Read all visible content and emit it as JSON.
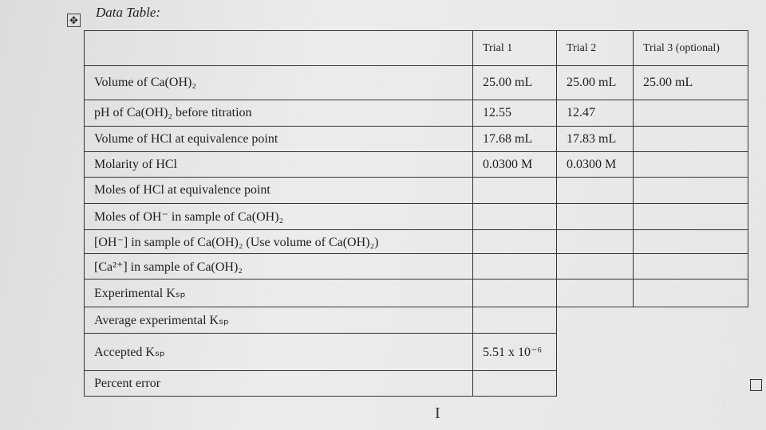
{
  "header": {
    "title": "Data Table:"
  },
  "table": {
    "columns": [
      "Trial 1",
      "Trial 2",
      "Trial 3 (optional)"
    ],
    "rows": [
      {
        "label": "Volume of Ca(OH)₂",
        "values": [
          "25.00 mL",
          "25.00 mL",
          "25.00 mL"
        ]
      },
      {
        "label": "pH of Ca(OH)₂ before titration",
        "values": [
          "12.55",
          "12.47",
          null
        ]
      },
      {
        "label": "Volume of HCl at equivalence point",
        "values": [
          "17.68 mL",
          "17.83 mL",
          null
        ]
      },
      {
        "label": "Molarity of HCl",
        "values": [
          "0.0300 M",
          "0.0300 M",
          null
        ]
      },
      {
        "label": "Moles of HCl at equivalence point",
        "values": [
          null,
          null,
          null
        ]
      },
      {
        "label": "Moles of OH⁻ in sample of Ca(OH)₂",
        "values": [
          null,
          null,
          null
        ]
      },
      {
        "label": "[OH⁻] in sample of Ca(OH)₂ (Use volume of Ca(OH)₂)",
        "values": [
          null,
          null,
          null
        ]
      },
      {
        "label": "[Ca²⁺] in sample of Ca(OH)₂",
        "values": [
          null,
          null,
          null
        ]
      },
      {
        "label": "Experimental Kₛₚ",
        "values": [
          null,
          null,
          null
        ]
      },
      {
        "label": "Average experimental Kₛₚ",
        "values": [
          null
        ]
      },
      {
        "label": "Accepted Kₛₚ",
        "values": [
          "5.51 x 10⁻⁶"
        ]
      },
      {
        "label": "Percent error",
        "values": [
          null
        ]
      }
    ]
  }
}
